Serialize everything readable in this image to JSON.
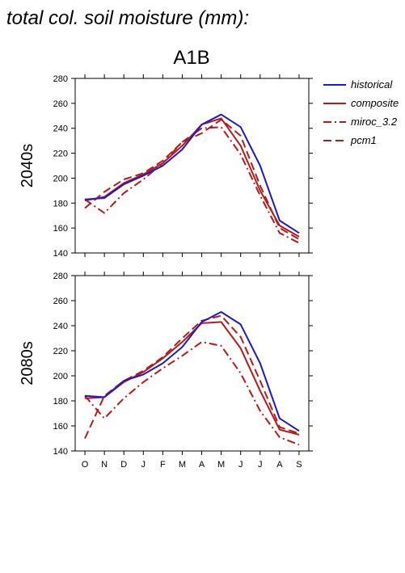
{
  "title": "total col. soil moisture (mm):",
  "subtitle": "A1B",
  "legend": [
    "historical",
    "composite",
    "miroc_3.2",
    "pcm1"
  ],
  "colors": {
    "historical": "#1a1ac8",
    "composite": "#b81a1a",
    "miroc_3.2": "#b81a1a",
    "pcm1": "#b81a1a"
  },
  "chart_data": [
    {
      "type": "line",
      "row_label": "2040s",
      "categories": [
        "O",
        "N",
        "D",
        "J",
        "F",
        "M",
        "A",
        "M",
        "J",
        "J",
        "A",
        "S"
      ],
      "ylim": [
        140,
        280
      ],
      "yticks": [
        140,
        160,
        180,
        200,
        220,
        240,
        260,
        280
      ],
      "series": [
        {
          "name": "historical",
          "style": "solid",
          "values": [
            183,
            184,
            195,
            202,
            210,
            223,
            243,
            251,
            241,
            210,
            166,
            156
          ]
        },
        {
          "name": "composite",
          "style": "solid",
          "values": [
            182,
            185,
            196,
            203,
            212,
            226,
            243,
            248,
            226,
            190,
            162,
            153
          ]
        },
        {
          "name": "miroc_3.2",
          "style": "dashdot",
          "values": [
            183,
            172,
            188,
            199,
            212,
            229,
            240,
            241,
            219,
            186,
            156,
            148
          ]
        },
        {
          "name": "pcm1",
          "style": "dash",
          "values": [
            176,
            189,
            199,
            204,
            214,
            229,
            236,
            247,
            234,
            194,
            160,
            151
          ]
        }
      ]
    },
    {
      "type": "line",
      "row_label": "2080s",
      "categories": [
        "O",
        "N",
        "D",
        "J",
        "F",
        "M",
        "A",
        "M",
        "J",
        "J",
        "A",
        "S"
      ],
      "ylim": [
        140,
        280
      ],
      "yticks": [
        140,
        160,
        180,
        200,
        220,
        240,
        260,
        280
      ],
      "series": [
        {
          "name": "historical",
          "style": "solid",
          "values": [
            184,
            183,
            196,
            201,
            210,
            223,
            243,
            251,
            241,
            210,
            166,
            156
          ]
        },
        {
          "name": "composite",
          "style": "solid",
          "values": [
            182,
            183,
            195,
            203,
            214,
            227,
            242,
            243,
            222,
            188,
            157,
            153
          ]
        },
        {
          "name": "miroc_3.2",
          "style": "dashdot",
          "values": [
            184,
            166,
            182,
            195,
            206,
            216,
            227,
            224,
            202,
            172,
            151,
            145
          ]
        },
        {
          "name": "pcm1",
          "style": "dash",
          "values": [
            150,
            184,
            196,
            204,
            215,
            230,
            244,
            248,
            231,
            196,
            159,
            154
          ]
        }
      ]
    }
  ]
}
